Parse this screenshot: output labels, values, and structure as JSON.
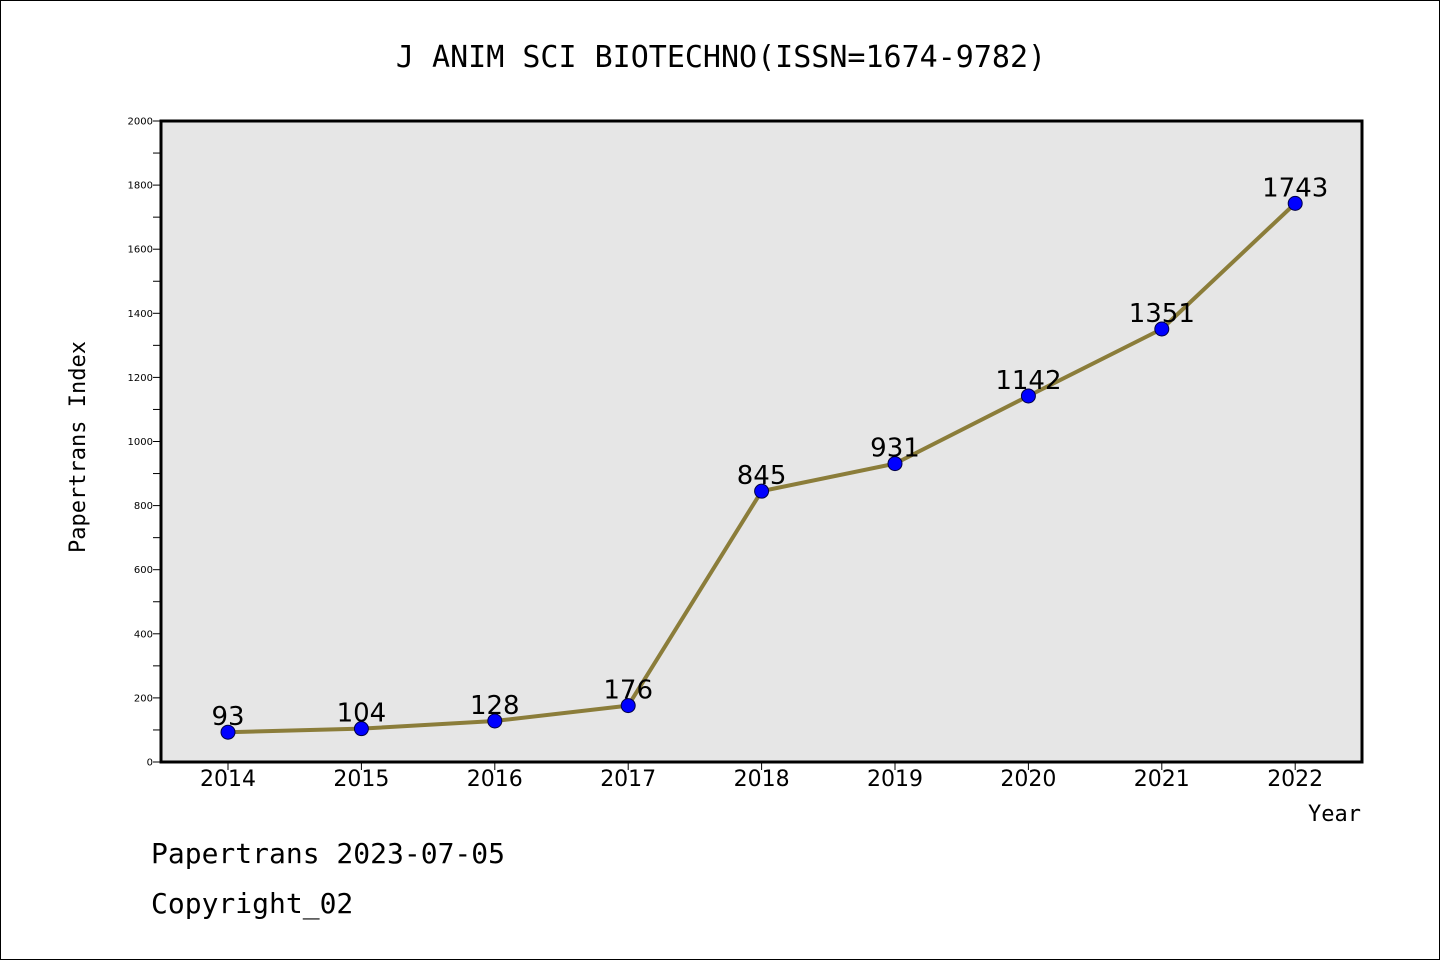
{
  "chart_data": {
    "type": "line",
    "title": "J ANIM SCI BIOTECHNO(ISSN=1674-9782)",
    "xlabel": "Year",
    "ylabel": "Papertrans Index",
    "categories": [
      "2014",
      "2015",
      "2016",
      "2017",
      "2018",
      "2019",
      "2020",
      "2021",
      "2022"
    ],
    "values": [
      93,
      104,
      128,
      176,
      845,
      931,
      1142,
      1351,
      1743
    ],
    "data_labels": [
      "93",
      "104",
      "128",
      "176",
      "845",
      "931",
      "1142",
      "1351",
      "1743"
    ],
    "ylim": [
      0,
      2000
    ],
    "yticks": [
      0,
      200,
      400,
      600,
      800,
      1000,
      1200,
      1400,
      1600,
      1800,
      2000
    ],
    "grid": false,
    "colors": {
      "line": "#8b7d3a",
      "marker": "#0000ff",
      "plot_background": "#e6e6e6"
    }
  },
  "footer": {
    "date_line": "Papertrans 2023-07-05",
    "copyright": "Copyright_02"
  }
}
